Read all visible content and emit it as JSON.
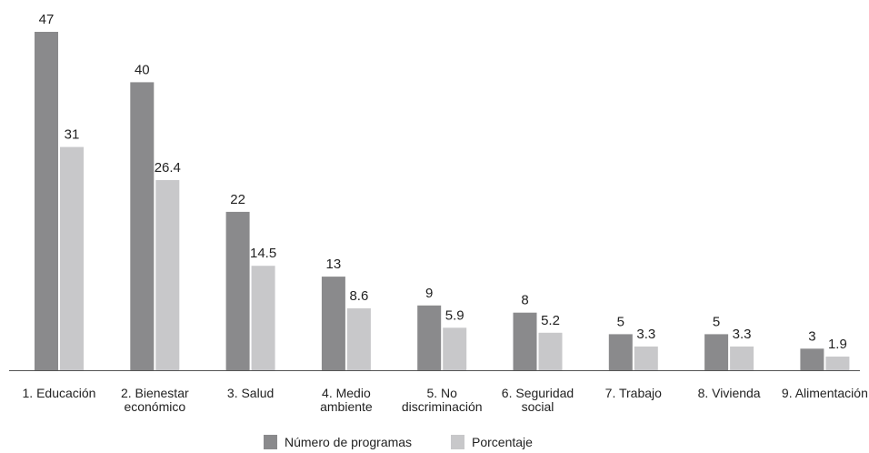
{
  "chart_data": {
    "type": "bar",
    "categories": [
      "1. Educación",
      "2. Bienestar económico",
      "3. Salud",
      "4. Medio ambiente",
      "5. No discriminación",
      "6. Seguridad social",
      "7. Trabajo",
      "8. Vivienda",
      "9. Alimentación"
    ],
    "category_lines": [
      [
        "1. Educación"
      ],
      [
        "2. Bienestar",
        "económico"
      ],
      [
        "3. Salud"
      ],
      [
        "4. Medio",
        "ambiente"
      ],
      [
        "5. No",
        "discriminación"
      ],
      [
        "6. Seguridad",
        "social"
      ],
      [
        "7. Trabajo"
      ],
      [
        "8. Vivienda"
      ],
      [
        "9. Alimentación"
      ]
    ],
    "series": [
      {
        "name": "Número de programas",
        "color": "#8a8a8c",
        "values": [
          47,
          40,
          22,
          13,
          9,
          8,
          5,
          5,
          3
        ],
        "labels": [
          "47",
          "40",
          "22",
          "13",
          "9",
          "8",
          "5",
          "5",
          "3"
        ]
      },
      {
        "name": "Porcentaje",
        "color": "#c8c8ca",
        "values": [
          31,
          26.4,
          14.5,
          8.6,
          5.9,
          5.2,
          3.3,
          3.3,
          1.9
        ],
        "labels": [
          "31",
          "26.4",
          "14.5",
          "8.6",
          "5.9",
          "5.2",
          "3.3",
          "3.3",
          "1.9"
        ]
      }
    ],
    "title": "",
    "xlabel": "",
    "ylabel": "",
    "ylim": [
      0,
      47
    ],
    "grid": false,
    "legend_position": "bottom-center"
  }
}
